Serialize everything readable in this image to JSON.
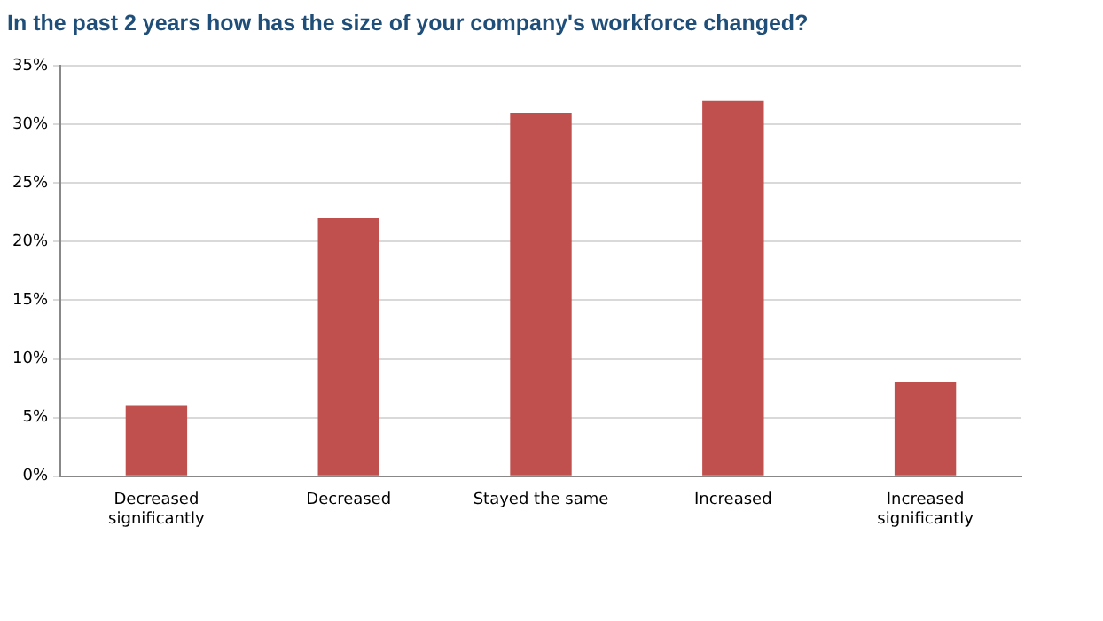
{
  "chart_data": {
    "type": "bar",
    "title": "In the past 2 years how has the size of your company's workforce changed?",
    "categories": [
      "Decreased significantly",
      "Decreased",
      "Stayed the same",
      "Increased",
      "Increased significantly"
    ],
    "values": [
      6,
      22,
      31,
      32,
      8
    ],
    "color": "#c0504d",
    "ylim": [
      0,
      35
    ],
    "yticks": [
      {
        "value": 0,
        "label": "0%"
      },
      {
        "value": 5,
        "label": "5%"
      },
      {
        "value": 10,
        "label": "10%"
      },
      {
        "value": 15,
        "label": "15%"
      },
      {
        "value": 20,
        "label": "20%"
      },
      {
        "value": 25,
        "label": "25%"
      },
      {
        "value": 30,
        "label": "30%"
      },
      {
        "value": 35,
        "label": "35%"
      }
    ],
    "grid": "y",
    "legend": false
  }
}
